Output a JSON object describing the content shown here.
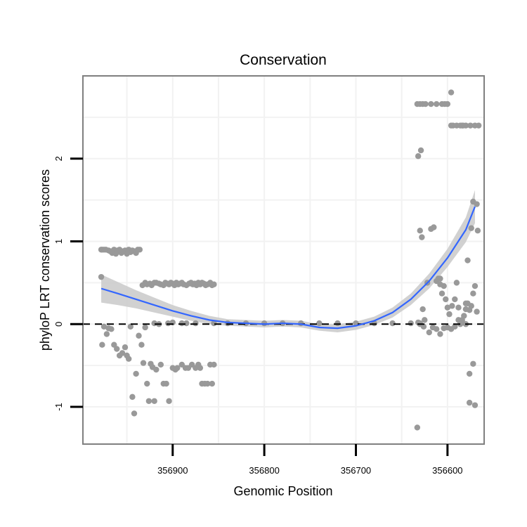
{
  "chart_data": {
    "type": "scatter",
    "title": "Conservation",
    "xlabel": "Genomic Position",
    "ylabel": "phyloP LRT conservation scores",
    "x_reversed": true,
    "xlim": [
      356998,
      356560
    ],
    "ylim": [
      -1.45,
      3.0
    ],
    "x_ticks": [
      356900,
      356800,
      356700,
      356600
    ],
    "x_tick_labels": [
      "356900",
      "356800",
      "356700",
      "356600"
    ],
    "y_ticks": [
      -1,
      0,
      1,
      2
    ],
    "y_tick_labels": [
      "-1",
      "0",
      "1",
      "2"
    ],
    "grid": true,
    "reference_line": {
      "y": 0,
      "style": "dashed"
    },
    "colors": {
      "points": "#999999",
      "smooth": "#3366ff",
      "ribbon": "#cccccc",
      "border": "#7f7f7f",
      "grid": "#f2f2f2"
    },
    "series": [
      {
        "kind": "points",
        "x": [
          356978,
          356977,
          356975,
          356973,
          356970,
          356968,
          356966,
          356964,
          356962,
          356960,
          356958,
          356956,
          356954,
          356952,
          356950,
          356948,
          356946,
          356944,
          356942,
          356940,
          356938,
          356936,
          356933,
          356930,
          356928,
          356925,
          356923,
          356920,
          356918,
          356915,
          356913,
          356910,
          356908,
          356906,
          356904,
          356902,
          356900,
          356898,
          356896,
          356894,
          356892,
          356890,
          356888,
          356885,
          356882,
          356880,
          356878,
          356876,
          356874,
          356872,
          356870,
          356868,
          356866,
          356864,
          356862,
          356859,
          356857,
          356855,
          356977,
          356975,
          356972,
          356970,
          356967,
          356964,
          356961,
          356958,
          356955,
          356952,
          356950,
          356948,
          356946,
          356944,
          356942,
          356940,
          356937,
          356934,
          356932,
          356930,
          356928,
          356926,
          356924,
          356922,
          356920,
          356918,
          356915,
          356913,
          356910,
          356907,
          356904,
          356900,
          356897,
          356895,
          356890,
          356886,
          356883,
          356879,
          356875,
          356872,
          356870,
          356868,
          356865,
          356862,
          356859,
          356857,
          356855,
          356978,
          356920,
          356905,
          356900,
          356890,
          356885,
          356875,
          356855,
          356840,
          356820,
          356800,
          356780,
          356760,
          356740,
          356720,
          356700,
          356680,
          356660,
          356640,
          356630,
          356633,
          356632,
          356629,
          356630,
          356628,
          356627,
          356625,
          356622,
          356618,
          356615,
          356612,
          356610,
          356608,
          356606,
          356604,
          356602,
          356600,
          356598,
          356595,
          356592,
          356590,
          356588,
          356586,
          356584,
          356582,
          356580,
          356578,
          356576,
          356574,
          356572,
          356570,
          356632,
          356630,
          356626,
          356620,
          356616,
          356612,
          356608,
          356604,
          356600,
          356596,
          356592,
          356588,
          356584,
          356580,
          356576,
          356572,
          356570,
          356576,
          356578,
          356574,
          356572,
          356568,
          356567,
          356630,
          356633,
          356627,
          356624,
          356618,
          356612,
          356606,
          356603,
          356600,
          356596,
          356594,
          356590,
          356586,
          356583,
          356580,
          356575,
          356570,
          356566,
          356596,
          356584,
          356608,
          356580,
          356568
        ],
        "y": [
          0.9,
          0.9,
          0.9,
          0.9,
          0.89,
          0.88,
          0.86,
          0.9,
          0.85,
          0.89,
          0.9,
          0.86,
          0.88,
          0.89,
          0.85,
          0.9,
          0.87,
          0.89,
          0.88,
          0.86,
          0.9,
          0.9,
          0.47,
          0.5,
          0.48,
          0.49,
          0.47,
          0.5,
          0.5,
          0.49,
          0.48,
          0.47,
          0.5,
          0.49,
          0.48,
          0.5,
          0.49,
          0.47,
          0.5,
          0.48,
          0.49,
          0.5,
          0.48,
          0.47,
          0.49,
          0.5,
          0.48,
          0.49,
          0.47,
          0.5,
          0.48,
          0.5,
          0.49,
          0.47,
          0.48,
          0.5,
          0.47,
          0.48,
          -0.25,
          -0.03,
          -0.12,
          -0.05,
          -0.06,
          -0.25,
          -0.3,
          -0.38,
          -0.35,
          -0.28,
          -0.38,
          -0.42,
          -0.03,
          -0.88,
          -1.08,
          -0.6,
          -0.14,
          -0.25,
          -0.47,
          -0.04,
          -0.72,
          -0.93,
          -0.48,
          -0.52,
          -0.93,
          -0.55,
          0.0,
          -0.49,
          -0.72,
          -0.72,
          -0.93,
          -0.53,
          -0.55,
          -0.53,
          -0.49,
          -0.53,
          -0.53,
          -0.49,
          -0.53,
          -0.49,
          -0.53,
          -0.72,
          -0.72,
          -0.72,
          -0.49,
          -0.72,
          -0.49,
          0.57,
          0.01,
          0.01,
          0.02,
          0.01,
          0.01,
          0.01,
          0.01,
          0.01,
          0.01,
          0.01,
          0.01,
          0.01,
          0.01,
          0.01,
          0.01,
          0.01,
          0.01,
          0.01,
          0.01,
          -1.25,
          2.03,
          2.1,
          1.13,
          1.05,
          0.18,
          0.05,
          0.5,
          1.15,
          1.17,
          0.52,
          0.55,
          0.55,
          0.37,
          0.46,
          0.3,
          0.2,
          0.12,
          0.22,
          0.3,
          0.5,
          0.2,
          0.0,
          0.05,
          0.1,
          0.18,
          0.25,
          0.17,
          0.22,
          0.37,
          0.46,
          0.02,
          0.0,
          -0.03,
          -0.1,
          -0.04,
          -0.06,
          -0.12,
          -0.05,
          -0.04,
          -0.06,
          -0.03,
          0.05,
          0.03,
          0.0,
          -0.95,
          -0.48,
          -0.98,
          -0.6,
          0.77,
          1.16,
          1.48,
          1.45,
          1.13,
          2.66,
          2.66,
          2.66,
          2.66,
          2.66,
          2.66,
          2.66,
          2.66,
          2.66,
          2.4,
          2.4,
          2.4,
          2.4,
          2.4,
          2.4,
          2.4,
          2.4,
          2.4,
          2.8,
          2.4,
          0.48,
          0.25,
          0.15
        ]
      },
      {
        "kind": "smooth",
        "x": [
          356978,
          356960,
          356940,
          356920,
          356900,
          356880,
          356860,
          356840,
          356820,
          356800,
          356780,
          356760,
          356740,
          356720,
          356700,
          356680,
          356660,
          356640,
          356620,
          356600,
          356580,
          356570
        ],
        "y": [
          0.43,
          0.37,
          0.3,
          0.23,
          0.16,
          0.1,
          0.05,
          0.02,
          0.01,
          0.0,
          0.01,
          0.0,
          -0.04,
          -0.05,
          -0.02,
          0.04,
          0.14,
          0.3,
          0.52,
          0.8,
          1.14,
          1.42
        ],
        "ci_half_width": [
          0.17,
          0.14,
          0.11,
          0.09,
          0.07,
          0.06,
          0.05,
          0.04,
          0.04,
          0.04,
          0.04,
          0.04,
          0.04,
          0.05,
          0.05,
          0.05,
          0.06,
          0.07,
          0.09,
          0.11,
          0.15,
          0.2
        ]
      }
    ]
  }
}
